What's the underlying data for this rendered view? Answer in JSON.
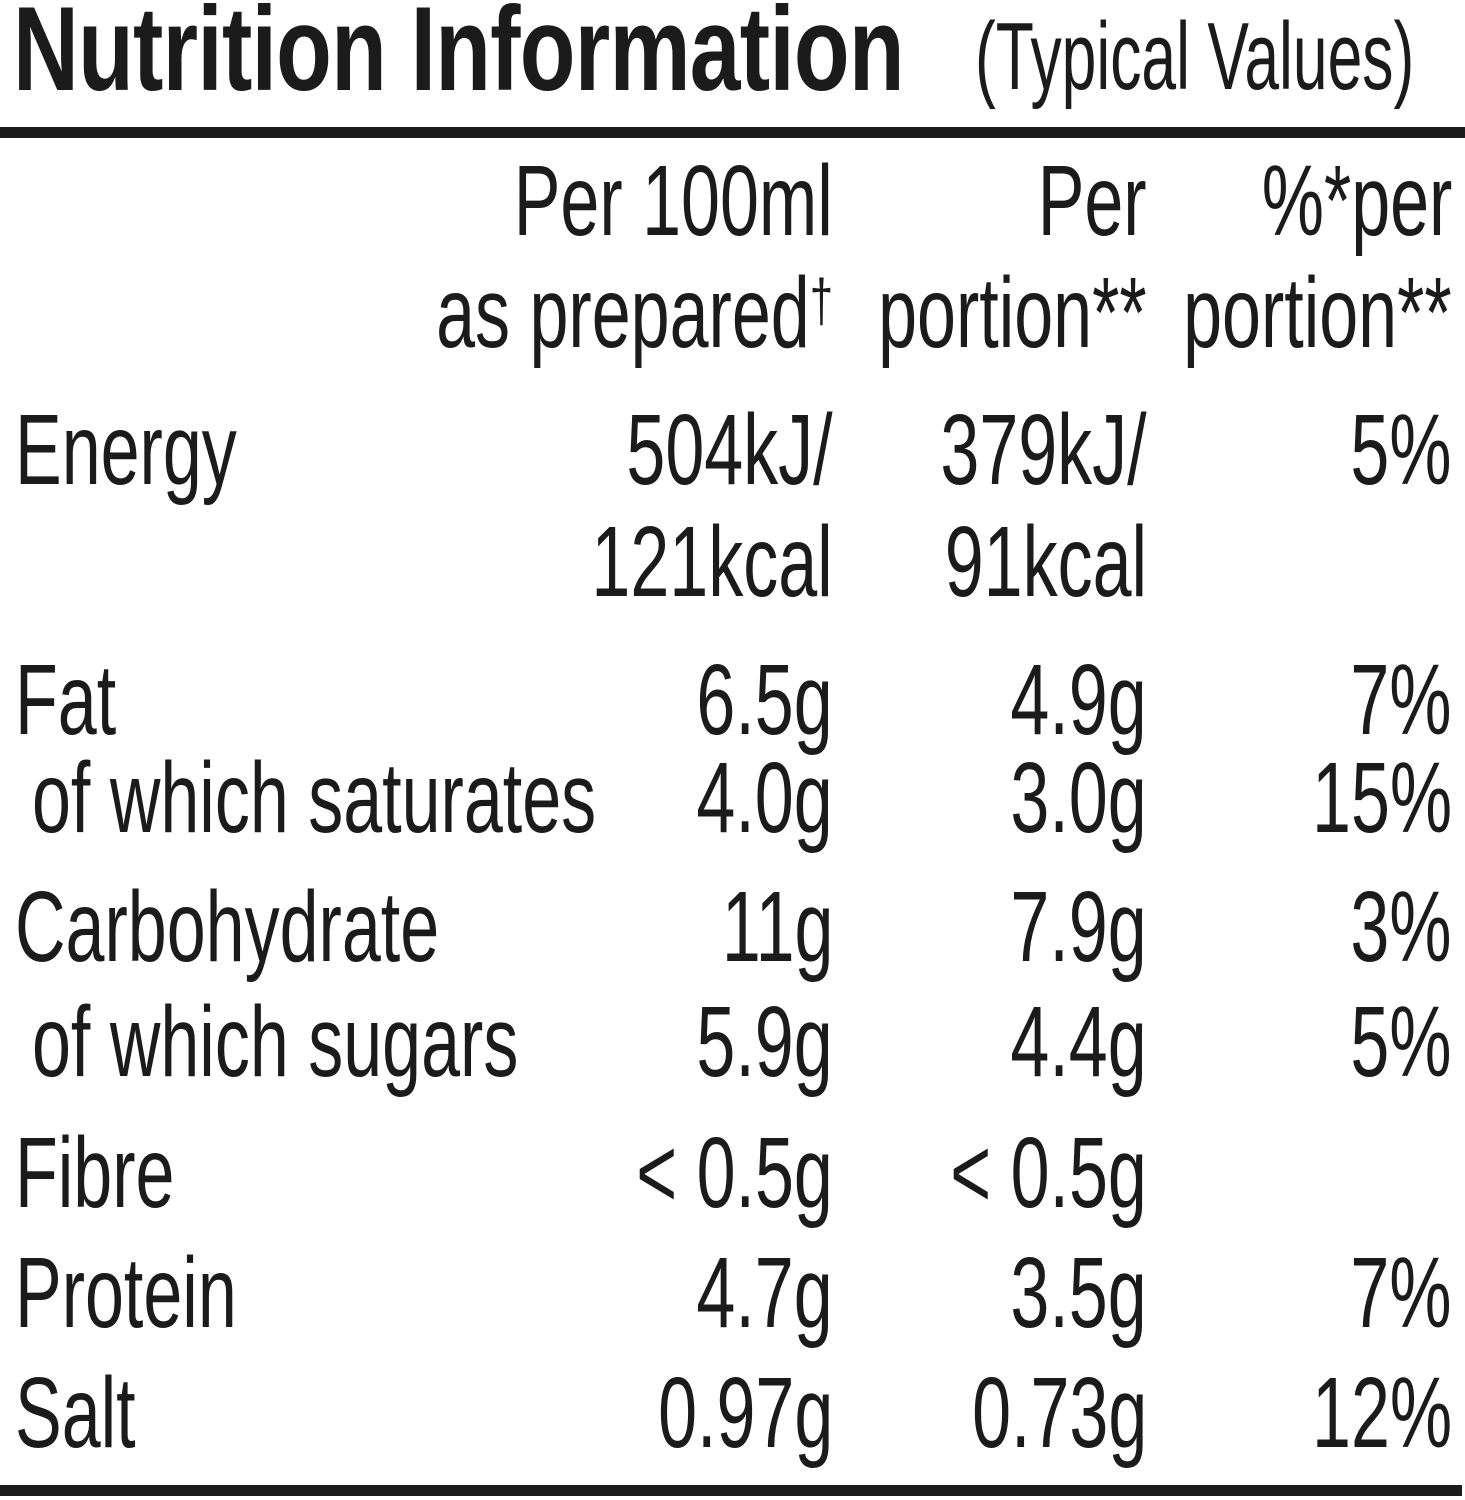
{
  "title": {
    "main": "Nutrition Information",
    "note": "(Typical Values)"
  },
  "colors": {
    "text": "#1b1b1b",
    "rule": "#1b1b1b",
    "background": "#ffffff"
  },
  "table": {
    "header": {
      "per_100ml": {
        "line1": "Per 100ml",
        "line2": "as prepared",
        "superscript": "†"
      },
      "per_portion": {
        "line1": "Per",
        "line2": "portion**"
      },
      "percent_per_portion": {
        "line1": "%*per",
        "line2": "portion**"
      }
    },
    "rows": [
      {
        "label": "Energy",
        "per_100ml": "504kJ/",
        "per_100ml_line2": "121kcal",
        "per_portion": "379kJ/",
        "per_portion_line2": "91kcal",
        "percent": "5%"
      },
      {
        "label": "Fat",
        "per_100ml": "6.5g",
        "per_portion": "4.9g",
        "percent": "7%"
      },
      {
        "label": "of which saturates",
        "per_100ml": "4.0g",
        "per_portion": "3.0g",
        "percent": "15%"
      },
      {
        "label": "Carbohydrate",
        "per_100ml": "11g",
        "per_portion": "7.9g",
        "percent": "3%"
      },
      {
        "label": "of which sugars",
        "per_100ml": "5.9g",
        "per_portion": "4.4g",
        "percent": "5%"
      },
      {
        "label": "Fibre",
        "per_100ml": "< 0.5g",
        "per_portion": "< 0.5g",
        "percent": ""
      },
      {
        "label": "Protein",
        "per_100ml": "4.7g",
        "per_portion": "3.5g",
        "percent": "7%"
      },
      {
        "label": "Salt",
        "per_100ml": "0.97g",
        "per_portion": "0.73g",
        "percent": "12%"
      }
    ]
  }
}
